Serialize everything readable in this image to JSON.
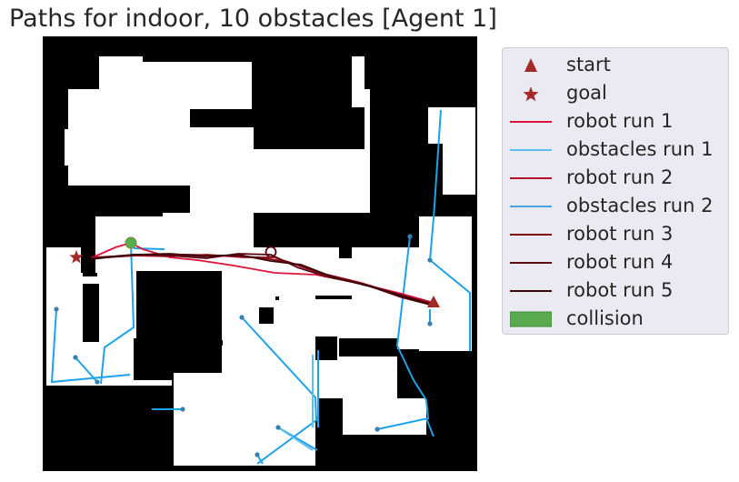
{
  "title": "Paths for indoor, 10 obstacles [Agent 1]",
  "colors": {
    "wall": "#000000",
    "free": "#ffffff",
    "start": "#a52a2a",
    "goal": "#a52a2a",
    "collision": "#5aaa50",
    "legend_bg": "#eaeaf2"
  },
  "legend": [
    {
      "label": "start",
      "kind": "triangle",
      "color": "#a52a2a"
    },
    {
      "label": "goal",
      "kind": "star",
      "color": "#a52a2a"
    },
    {
      "label": "robot run 1",
      "kind": "line",
      "color": "#dc143c"
    },
    {
      "label": "obstacles run 1",
      "kind": "line",
      "color": "#5bc0f0"
    },
    {
      "label": "robot run 2",
      "kind": "line",
      "color": "#b0102a"
    },
    {
      "label": "obstacles run 2",
      "kind": "line",
      "color": "#4aa3e0"
    },
    {
      "label": "robot run 3",
      "kind": "line",
      "color": "#800010"
    },
    {
      "label": "robot run 4",
      "kind": "line",
      "color": "#5a0010"
    },
    {
      "label": "robot run 5",
      "kind": "line",
      "color": "#3a0008"
    },
    {
      "label": "collision",
      "kind": "patch",
      "color": "#5aaa50"
    }
  ],
  "chart_data": {
    "type": "line",
    "title": "Paths for indoor, 10 obstacles [Agent 1]",
    "xlim": [
      0,
      478
    ],
    "ylim": [
      478,
      0
    ],
    "grid": false,
    "legend_position": "outside right",
    "start": [
      430,
      293
    ],
    "goal": [
      37,
      243
    ],
    "collisions": [
      [
        97,
        227
      ]
    ],
    "markers_open": [
      [
        251,
        237
      ]
    ],
    "robot_runs": [
      {
        "name": "robot run 1",
        "color": "#dc143c",
        "points": [
          [
            430,
            293
          ],
          [
            395,
            283
          ],
          [
            350,
            272
          ],
          [
            300,
            262
          ],
          [
            255,
            260
          ],
          [
            210,
            252
          ],
          [
            170,
            246
          ],
          [
            140,
            243
          ],
          [
            110,
            234
          ],
          [
            97,
            227
          ],
          [
            80,
            232
          ],
          [
            55,
            243
          ]
        ]
      },
      {
        "name": "robot run 2",
        "color": "#b0102a",
        "points": [
          [
            430,
            293
          ],
          [
            396,
            285
          ],
          [
            350,
            271
          ],
          [
            305,
            260
          ],
          [
            255,
            243
          ],
          [
            220,
            243
          ],
          [
            180,
            240
          ],
          [
            140,
            242
          ],
          [
            100,
            241
          ],
          [
            53,
            243
          ]
        ]
      },
      {
        "name": "robot run 3",
        "color": "#800010",
        "points": [
          [
            430,
            294
          ],
          [
            398,
            286
          ],
          [
            352,
            272
          ],
          [
            308,
            261
          ],
          [
            270,
            248
          ],
          [
            238,
            243
          ],
          [
            200,
            241
          ],
          [
            160,
            240
          ],
          [
            120,
            240
          ],
          [
            53,
            244
          ]
        ]
      },
      {
        "name": "robot run 4",
        "color": "#5a0010",
        "points": [
          [
            430,
            296
          ],
          [
            395,
            287
          ],
          [
            355,
            273
          ],
          [
            312,
            264
          ],
          [
            280,
            254
          ],
          [
            251,
            240
          ],
          [
            215,
            239
          ],
          [
            180,
            244
          ],
          [
            140,
            241
          ],
          [
            100,
            240
          ],
          [
            53,
            244
          ]
        ]
      },
      {
        "name": "robot run 5",
        "color": "#3a0008",
        "points": [
          [
            430,
            296
          ],
          [
            398,
            286
          ],
          [
            360,
            275
          ],
          [
            320,
            265
          ],
          [
            284,
            251
          ],
          [
            251,
            247
          ],
          [
            215,
            240
          ],
          [
            178,
            242
          ],
          [
            140,
            239
          ],
          [
            100,
            240
          ],
          [
            53,
            245
          ]
        ]
      }
    ],
    "obstacle_paths": [
      {
        "name": "obstacles run 1",
        "color": "#1ea1e8",
        "points": [
          [
            438,
            81
          ],
          [
            430,
            200
          ],
          [
            426,
            246
          ]
        ]
      },
      {
        "name": "obstacles run 1",
        "color": "#1ea1e8",
        "points": [
          [
            426,
            246
          ],
          [
            470,
            282
          ],
          [
            470,
            346
          ]
        ]
      },
      {
        "name": "obstacles run 1",
        "color": "#1ea1e8",
        "points": [
          [
            404,
            220
          ],
          [
            390,
            340
          ],
          [
            408,
            378
          ],
          [
            422,
            400
          ],
          [
            424,
            420
          ],
          [
            368,
            432
          ]
        ]
      },
      {
        "name": "obstacles run 1",
        "color": "#1ea1e8",
        "points": [
          [
            426,
            316
          ],
          [
            426,
            300
          ]
        ]
      },
      {
        "name": "obstacles run 1",
        "color": "#1ea1e8",
        "points": [
          [
            15,
            300
          ],
          [
            10,
            380
          ],
          [
            96,
            372
          ]
        ]
      },
      {
        "name": "obstacles run 1",
        "color": "#1ea1e8",
        "points": [
          [
            36,
            353
          ],
          [
            60,
            380
          ]
        ]
      },
      {
        "name": "obstacles run 1",
        "color": "#1ea1e8",
        "points": [
          [
            97,
            227
          ],
          [
            100,
            320
          ],
          [
            68,
            342
          ],
          [
            64,
            382
          ]
        ]
      },
      {
        "name": "obstacles run 1",
        "color": "#1ea1e8",
        "points": [
          [
            219,
            309
          ],
          [
            300,
            397
          ],
          [
            301,
            422
          ],
          [
            236,
            470
          ]
        ]
      },
      {
        "name": "obstacles run 1",
        "color": "#1ea1e8",
        "points": [
          [
            120,
            410
          ],
          [
            154,
            410
          ]
        ]
      },
      {
        "name": "obstacles run 1",
        "color": "#1ea1e8",
        "points": [
          [
            236,
            460
          ],
          [
            242,
            470
          ]
        ]
      },
      {
        "name": "obstacles run 1",
        "color": "#1ea1e8",
        "points": [
          [
            303,
            345
          ],
          [
            303,
            430
          ]
        ]
      },
      {
        "name": "obstacles run 1",
        "color": "#1ea1e8",
        "points": [
          [
            259,
            430
          ],
          [
            302,
            455
          ]
        ]
      },
      {
        "name": "obstacles run 1",
        "color": "#1ea1e8",
        "points": [
          [
            422,
            420
          ],
          [
            430,
            440
          ]
        ]
      },
      {
        "name": "obstacles run 1",
        "color": "#1ea1e8",
        "points": [
          [
            100,
            233
          ],
          [
            134,
            234
          ]
        ]
      },
      {
        "name": "obstacles run 2",
        "color": "#5bc0f0",
        "points": [
          [
            297,
            350
          ],
          [
            297,
            430
          ]
        ]
      },
      {
        "name": "obstacles run 2",
        "color": "#5bc0f0",
        "points": [
          [
            259,
            430
          ],
          [
            297,
            455
          ]
        ]
      }
    ],
    "obstacle_dots": [
      [
        404,
        220
      ],
      [
        426,
        246
      ],
      [
        426,
        316
      ],
      [
        15,
        300
      ],
      [
        36,
        353
      ],
      [
        60,
        380
      ],
      [
        219,
        309
      ],
      [
        154,
        410
      ],
      [
        236,
        460
      ],
      [
        259,
        430
      ],
      [
        368,
        432
      ]
    ]
  }
}
